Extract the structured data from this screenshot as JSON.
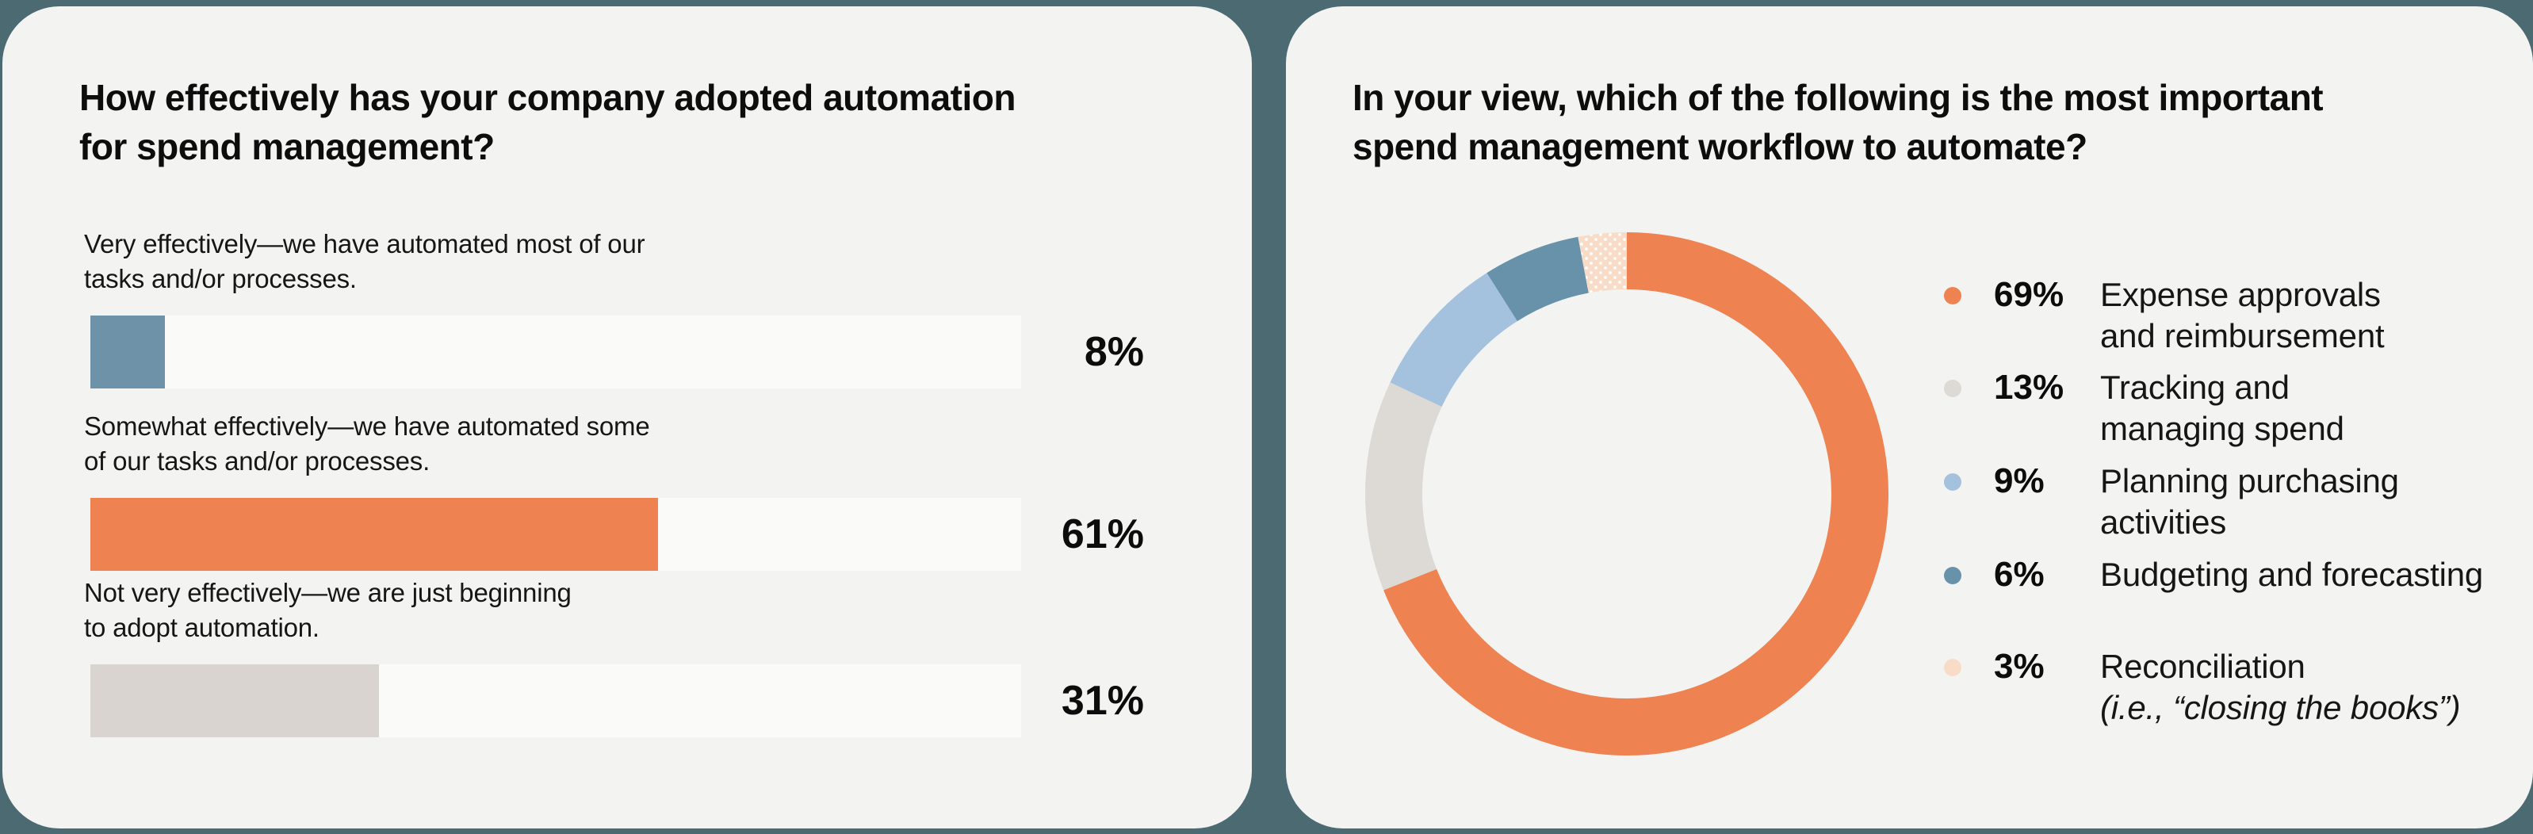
{
  "page": {
    "background_color": "#4c6a72",
    "card_color": "#f3f3f2"
  },
  "left_card": {
    "title": "How effectively has your company adopted automation for spend management?",
    "title_line1": "How effectively has your company adopted automation",
    "title_line2": "for spend management?",
    "rows": [
      {
        "label_line1": "Very effectively—we have automated most of our",
        "label_line2": "tasks and/or processes.",
        "value_label": "8%"
      },
      {
        "label_line1": "Somewhat effectively—we have automated some",
        "label_line2": "of our tasks and/or processes.",
        "value_label": "61%"
      },
      {
        "label_line1": "Not very effectively—we are just beginning",
        "label_line2": "to adopt automation.",
        "value_label": "31%"
      }
    ]
  },
  "right_card": {
    "title": "In your view, which of the following is the most important spend management workflow to automate?",
    "title_line1": "In your view, which of the following is the most important",
    "title_line2": "spend management workflow to automate?",
    "legend": [
      {
        "pct": "69%",
        "line1": "Expense approvals",
        "line2": "and reimbursement",
        "line2_italic": false,
        "color": "#ee8251"
      },
      {
        "pct": "13%",
        "line1": "Tracking and",
        "line2": "managing spend",
        "line2_italic": false,
        "color": "#ddd9d4"
      },
      {
        "pct": "9%",
        "line1": "Planning purchasing",
        "line2": "activities",
        "line2_italic": false,
        "color": "#a4c1dd"
      },
      {
        "pct": "6%",
        "line1": "Budgeting and forecasting",
        "line2": "",
        "line2_italic": false,
        "color": "#6792a9"
      },
      {
        "pct": "3%",
        "line1": "Reconciliation",
        "line2": "(i.e., “closing the books”)",
        "line2_italic": true,
        "color": "#f9dcc8"
      }
    ]
  },
  "chart_data": [
    {
      "type": "bar",
      "orientation": "horizontal",
      "title": "How effectively has your company adopted automation for spend management?",
      "categories": [
        "Very effectively—we have automated most of our tasks and/or processes.",
        "Somewhat effectively—we have automated some of our tasks and/or processes.",
        "Not very effectively—we are just beginning to adopt automation."
      ],
      "values": [
        8,
        61,
        31
      ],
      "value_labels": [
        "8%",
        "61%",
        "31%"
      ],
      "bar_colors": [
        "#6e93a9",
        "#ee8251",
        "#d9d4d0"
      ],
      "track_color": "#fafaf9",
      "xlim": [
        0,
        100
      ],
      "grid": false,
      "value_label_position": "right"
    },
    {
      "type": "pie",
      "subtype": "donut",
      "title": "In your view, which of the following is the most important spend management workflow to automate?",
      "labels": [
        "Expense approvals and reimbursement",
        "Tracking and managing spend",
        "Planning purchasing activities",
        "Budgeting and forecasting",
        "Reconciliation (i.e., “closing the books”)"
      ],
      "values": [
        69,
        13,
        9,
        6,
        3
      ],
      "colors": [
        "#ee8251",
        "#ddd9d4",
        "#a4c1dd",
        "#6792a9",
        "#f9dcc8"
      ],
      "last_segment_pattern": "white-dots",
      "start_angle_deg": 0,
      "direction": "clockwise",
      "inner_radius_ratio": 0.78,
      "legend_position": "right"
    }
  ]
}
